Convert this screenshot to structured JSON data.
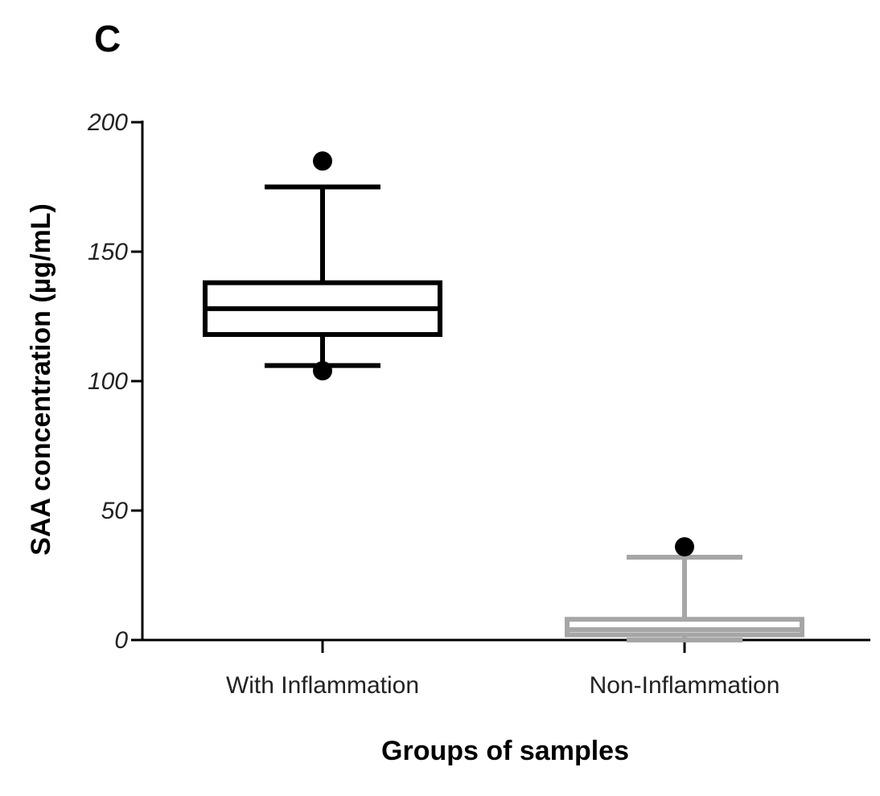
{
  "panel_label": "C",
  "chart_data": {
    "type": "box",
    "title": "",
    "xlabel": "Groups of samples",
    "ylabel": "SAA concentration (µg/mL)",
    "ylim": [
      0,
      200
    ],
    "yticks": [
      0,
      50,
      100,
      150,
      200
    ],
    "yticks_labels": [
      "0",
      "50",
      "100",
      "150",
      "200"
    ],
    "categories": [
      "With Inflammation",
      "Non-Inflammation"
    ],
    "boxes": [
      {
        "name": "With Inflammation",
        "color": "#000000",
        "whisker_low": 106,
        "q1": 118,
        "median": 128,
        "q3": 138,
        "whisker_high": 175,
        "outliers": [
          185,
          104
        ]
      },
      {
        "name": "Non-Inflammation",
        "color": "#a6a6a6",
        "whisker_low": 0,
        "q1": 2,
        "median": 4,
        "q3": 8,
        "whisker_high": 32,
        "outliers": [
          36
        ]
      }
    ],
    "grid": false,
    "legend": "none"
  }
}
